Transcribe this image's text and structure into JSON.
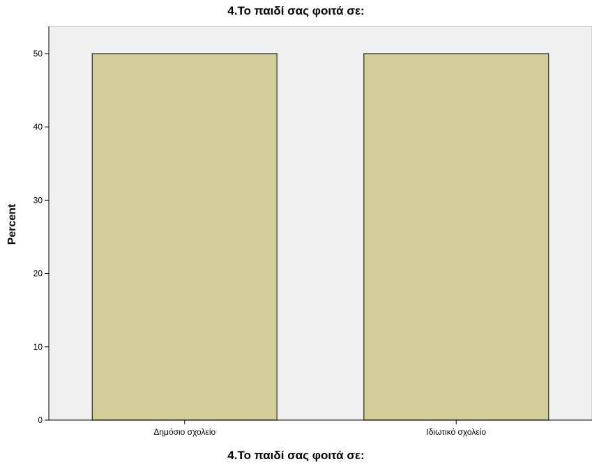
{
  "chart_data": {
    "type": "bar",
    "title": "4.Το παιδί σας φοιτά σε:",
    "xlabel": "4.Το παιδί σας φοιτά σε:",
    "ylabel": "Percent",
    "categories": [
      "Δημόσιο σχολείο",
      "Ιδιωτικό σχολείο"
    ],
    "values": [
      50,
      50
    ],
    "ylim": [
      0,
      53.7
    ],
    "yticks": [
      0,
      10,
      20,
      30,
      40,
      50
    ],
    "grid": false,
    "legend": "none",
    "colors": {
      "bar_fill": "#d3ce99",
      "bar_stroke": "#3a3a30",
      "plot_background": "#f0f0f0"
    }
  }
}
